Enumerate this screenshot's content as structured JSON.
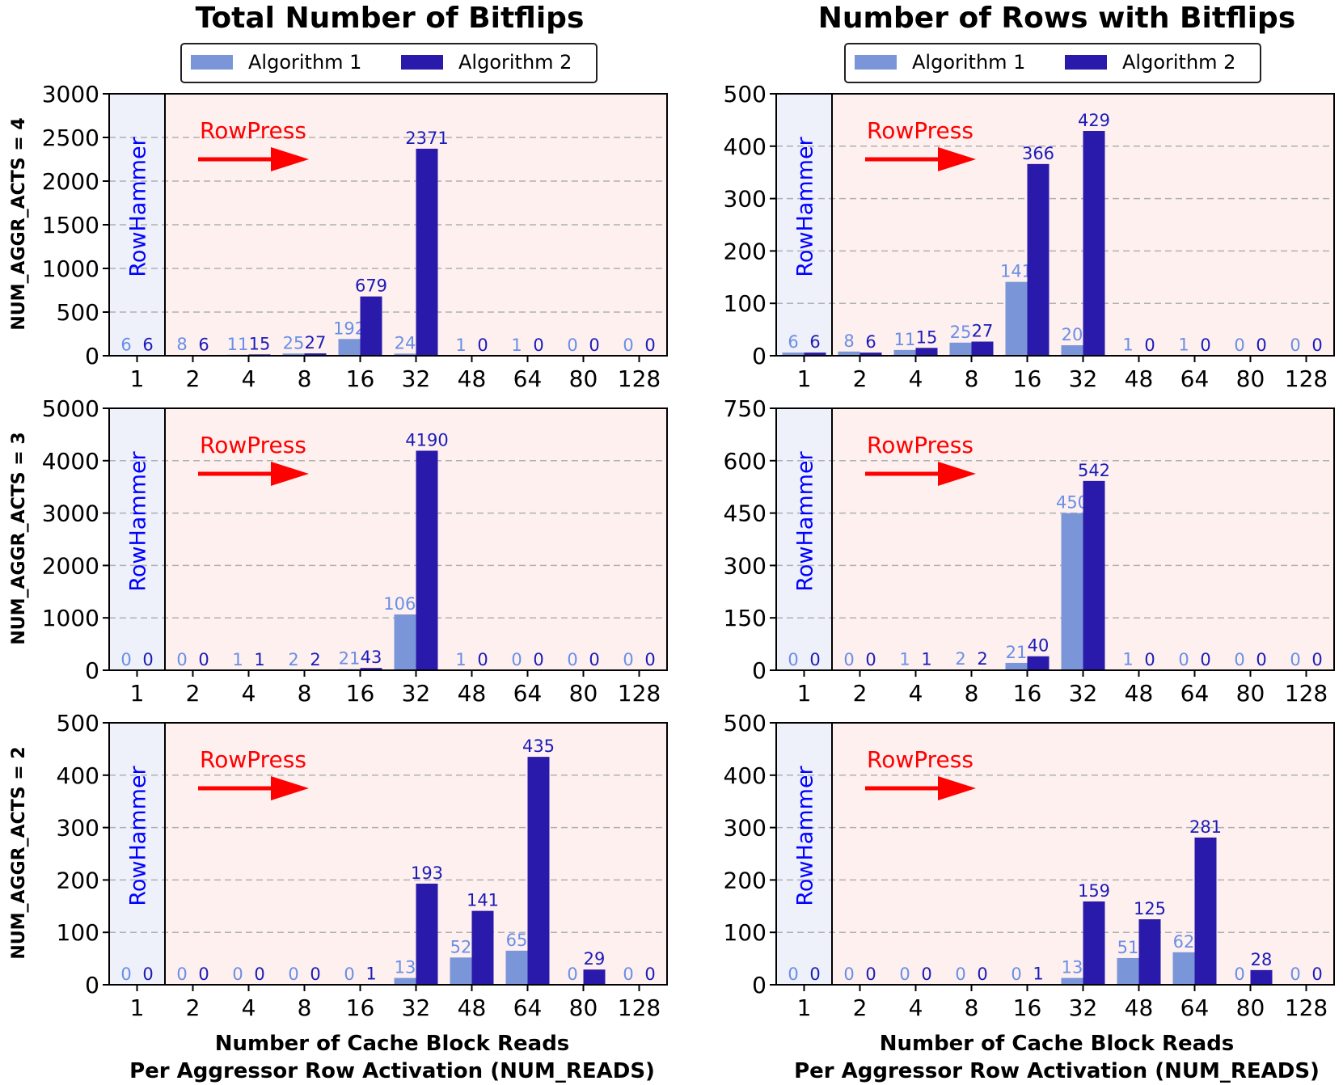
{
  "figure": {
    "column_titles": [
      "Total Number of Bitflips",
      "Number of Rows with Bitflips"
    ],
    "row_labels": [
      "NUM_AGGR_ACTS = 4",
      "NUM_AGGR_ACTS = 3",
      "NUM_AGGR_ACTS = 2"
    ],
    "xlabel_line1": "Number of Cache Block Reads",
    "xlabel_line2": "Per Aggressor Row Activation (NUM_READS)",
    "annotation_rowpress": "RowPress",
    "annotation_rowhammer": "RowHammer",
    "legend": [
      "Algorithm 1",
      "Algorithm 2"
    ]
  },
  "colors": {
    "algorithm1": "#7b96d8",
    "algorithm2": "#2a1aab",
    "algorithm1_label": "#6a8fe6",
    "algorithm2_label": "#1c1cb8",
    "rowpress_bg": "#fdf0ef",
    "rowhammer_bg": "#eef0fa",
    "arrow": "#ff0000",
    "rowhammer_text": "#0000ff",
    "grid": "#b0b0b0"
  },
  "chart_data": [
    {
      "type": "bar",
      "row": 0,
      "col": 0,
      "categories": [
        "1",
        "2",
        "4",
        "8",
        "16",
        "32",
        "48",
        "64",
        "80",
        "128"
      ],
      "ylim": [
        0,
        3000
      ],
      "yticks": [
        0,
        500,
        1000,
        1500,
        2000,
        2500,
        3000
      ],
      "series": [
        {
          "name": "Algorithm 1",
          "values": [
            6,
            8,
            11,
            25,
            192,
            24,
            1,
            1,
            0,
            0
          ]
        },
        {
          "name": "Algorithm 2",
          "values": [
            6,
            6,
            15,
            27,
            679,
            2371,
            0,
            0,
            0,
            0
          ]
        }
      ],
      "grid": true,
      "legend": "top-center"
    },
    {
      "type": "bar",
      "row": 0,
      "col": 1,
      "categories": [
        "1",
        "2",
        "4",
        "8",
        "16",
        "32",
        "48",
        "64",
        "80",
        "128"
      ],
      "ylim": [
        0,
        500
      ],
      "yticks": [
        0,
        100,
        200,
        300,
        400,
        500
      ],
      "series": [
        {
          "name": "Algorithm 1",
          "values": [
            6,
            8,
            11,
            25,
            141,
            20,
            1,
            1,
            0,
            0
          ]
        },
        {
          "name": "Algorithm 2",
          "values": [
            6,
            6,
            15,
            27,
            366,
            429,
            0,
            0,
            0,
            0
          ]
        }
      ],
      "grid": true,
      "legend": "top-center"
    },
    {
      "type": "bar",
      "row": 1,
      "col": 0,
      "categories": [
        "1",
        "2",
        "4",
        "8",
        "16",
        "32",
        "48",
        "64",
        "80",
        "128"
      ],
      "ylim": [
        0,
        5000
      ],
      "yticks": [
        0,
        1000,
        2000,
        3000,
        4000,
        5000
      ],
      "series": [
        {
          "name": "Algorithm 1",
          "values": [
            0,
            0,
            1,
            2,
            21,
            1065,
            1,
            0,
            0,
            0
          ]
        },
        {
          "name": "Algorithm 2",
          "values": [
            0,
            0,
            1,
            2,
            43,
            4190,
            0,
            0,
            0,
            0
          ]
        }
      ],
      "grid": true
    },
    {
      "type": "bar",
      "row": 1,
      "col": 1,
      "categories": [
        "1",
        "2",
        "4",
        "8",
        "16",
        "32",
        "48",
        "64",
        "80",
        "128"
      ],
      "ylim": [
        0,
        750
      ],
      "yticks": [
        0,
        150,
        300,
        450,
        600,
        750
      ],
      "series": [
        {
          "name": "Algorithm 1",
          "values": [
            0,
            0,
            1,
            2,
            21,
            450,
            1,
            0,
            0,
            0
          ]
        },
        {
          "name": "Algorithm 2",
          "values": [
            0,
            0,
            1,
            2,
            40,
            542,
            0,
            0,
            0,
            0
          ]
        }
      ],
      "grid": true
    },
    {
      "type": "bar",
      "row": 2,
      "col": 0,
      "categories": [
        "1",
        "2",
        "4",
        "8",
        "16",
        "32",
        "48",
        "64",
        "80",
        "128"
      ],
      "ylim": [
        0,
        500
      ],
      "yticks": [
        0,
        100,
        200,
        300,
        400,
        500
      ],
      "series": [
        {
          "name": "Algorithm 1",
          "values": [
            0,
            0,
            0,
            0,
            0,
            13,
            52,
            65,
            0,
            0
          ]
        },
        {
          "name": "Algorithm 2",
          "values": [
            0,
            0,
            0,
            0,
            1,
            193,
            141,
            435,
            29,
            0
          ]
        }
      ],
      "grid": true
    },
    {
      "type": "bar",
      "row": 2,
      "col": 1,
      "categories": [
        "1",
        "2",
        "4",
        "8",
        "16",
        "32",
        "48",
        "64",
        "80",
        "128"
      ],
      "ylim": [
        0,
        500
      ],
      "yticks": [
        0,
        100,
        200,
        300,
        400,
        500
      ],
      "series": [
        {
          "name": "Algorithm 1",
          "values": [
            0,
            0,
            0,
            0,
            0,
            13,
            51,
            62,
            0,
            0
          ]
        },
        {
          "name": "Algorithm 2",
          "values": [
            0,
            0,
            0,
            0,
            1,
            159,
            125,
            281,
            28,
            0
          ]
        }
      ],
      "grid": true
    }
  ]
}
